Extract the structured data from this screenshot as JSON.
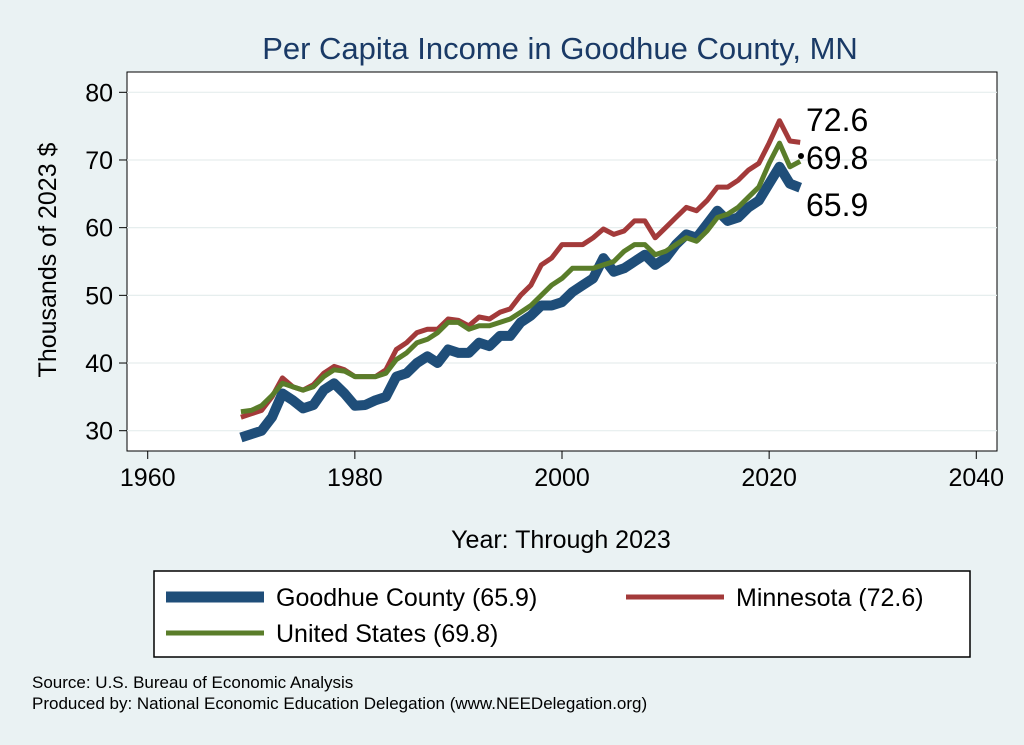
{
  "chart_data": {
    "type": "line",
    "title": "Per Capita Income in Goodhue County, MN",
    "xlabel": "Year: Through 2023",
    "ylabel": "Thousands of 2023 $",
    "xlim": [
      1958,
      2042
    ],
    "ylim": [
      27,
      83
    ],
    "x_ticks": [
      1960,
      1980,
      2000,
      2020,
      2040
    ],
    "y_ticks": [
      30,
      40,
      50,
      60,
      70,
      80
    ],
    "grid": true,
    "years": [
      1969,
      1970,
      1971,
      1972,
      1973,
      1974,
      1975,
      1976,
      1977,
      1978,
      1979,
      1980,
      1981,
      1982,
      1983,
      1984,
      1985,
      1986,
      1987,
      1988,
      1989,
      1990,
      1991,
      1992,
      1993,
      1994,
      1995,
      1996,
      1997,
      1998,
      1999,
      2000,
      2001,
      2002,
      2003,
      2004,
      2005,
      2006,
      2007,
      2008,
      2009,
      2010,
      2011,
      2012,
      2013,
      2014,
      2015,
      2016,
      2017,
      2018,
      2019,
      2020,
      2021,
      2022,
      2023
    ],
    "series": [
      {
        "name": "Goodhue County",
        "color": "#1f4e79",
        "values": [
          29.0,
          29.5,
          30.0,
          32.0,
          35.5,
          34.5,
          33.3,
          33.8,
          36.0,
          37.0,
          35.5,
          33.7,
          33.8,
          34.5,
          35.0,
          38.0,
          38.5,
          40.0,
          41.0,
          40.0,
          42.0,
          41.5,
          41.5,
          43.0,
          42.5,
          44.0,
          44.0,
          46.0,
          47.0,
          48.5,
          48.5,
          49.0,
          50.5,
          51.5,
          52.5,
          55.5,
          53.5,
          54.0,
          55.0,
          56.0,
          54.5,
          55.5,
          57.5,
          59.0,
          58.5,
          60.5,
          62.5,
          61.0,
          61.5,
          63.0,
          64.0,
          66.5,
          69.0,
          66.5,
          65.9
        ]
      },
      {
        "name": "Minnesota",
        "color": "#a33a3a",
        "values": [
          32.0,
          32.5,
          33.0,
          35.0,
          37.8,
          36.5,
          36.0,
          36.8,
          38.5,
          39.5,
          39.0,
          38.0,
          38.0,
          38.0,
          39.0,
          42.0,
          43.0,
          44.5,
          45.0,
          45.0,
          46.5,
          46.3,
          45.5,
          46.8,
          46.5,
          47.5,
          48.0,
          50.0,
          51.5,
          54.5,
          55.5,
          57.5,
          57.5,
          57.5,
          58.5,
          59.8,
          59.0,
          59.5,
          61.0,
          61.0,
          58.5,
          60.0,
          61.5,
          63.0,
          62.5,
          64.0,
          66.0,
          66.0,
          67.0,
          68.5,
          69.5,
          72.5,
          75.8,
          72.8,
          72.6
        ]
      },
      {
        "name": "United States",
        "color": "#5a7d2a",
        "values": [
          32.8,
          33.0,
          33.7,
          35.2,
          37.0,
          36.5,
          36.0,
          36.5,
          38.0,
          39.0,
          38.8,
          38.0,
          38.0,
          38.0,
          38.5,
          40.5,
          41.5,
          43.0,
          43.5,
          44.5,
          46.0,
          46.0,
          45.0,
          45.5,
          45.5,
          46.0,
          46.5,
          47.5,
          48.5,
          50.0,
          51.5,
          52.5,
          54.0,
          54.0,
          54.0,
          54.5,
          55.0,
          56.5,
          57.5,
          57.5,
          56.0,
          56.5,
          57.5,
          58.5,
          58.0,
          59.5,
          61.5,
          62.0,
          63.0,
          64.5,
          66.0,
          69.5,
          72.5,
          69.0,
          69.8
        ]
      }
    ],
    "end_labels": [
      "72.6",
      "69.8",
      "65.9"
    ],
    "legend": [
      "Goodhue County (65.9)",
      "Minnesota (72.6)",
      "United States (69.8)"
    ],
    "legend_placement": "bottom"
  },
  "source": {
    "line1": "Source: U.S. Bureau of Economic Analysis",
    "line2": "Produced by: National Economic Education Delegation (www.NEEDelegation.org)"
  }
}
